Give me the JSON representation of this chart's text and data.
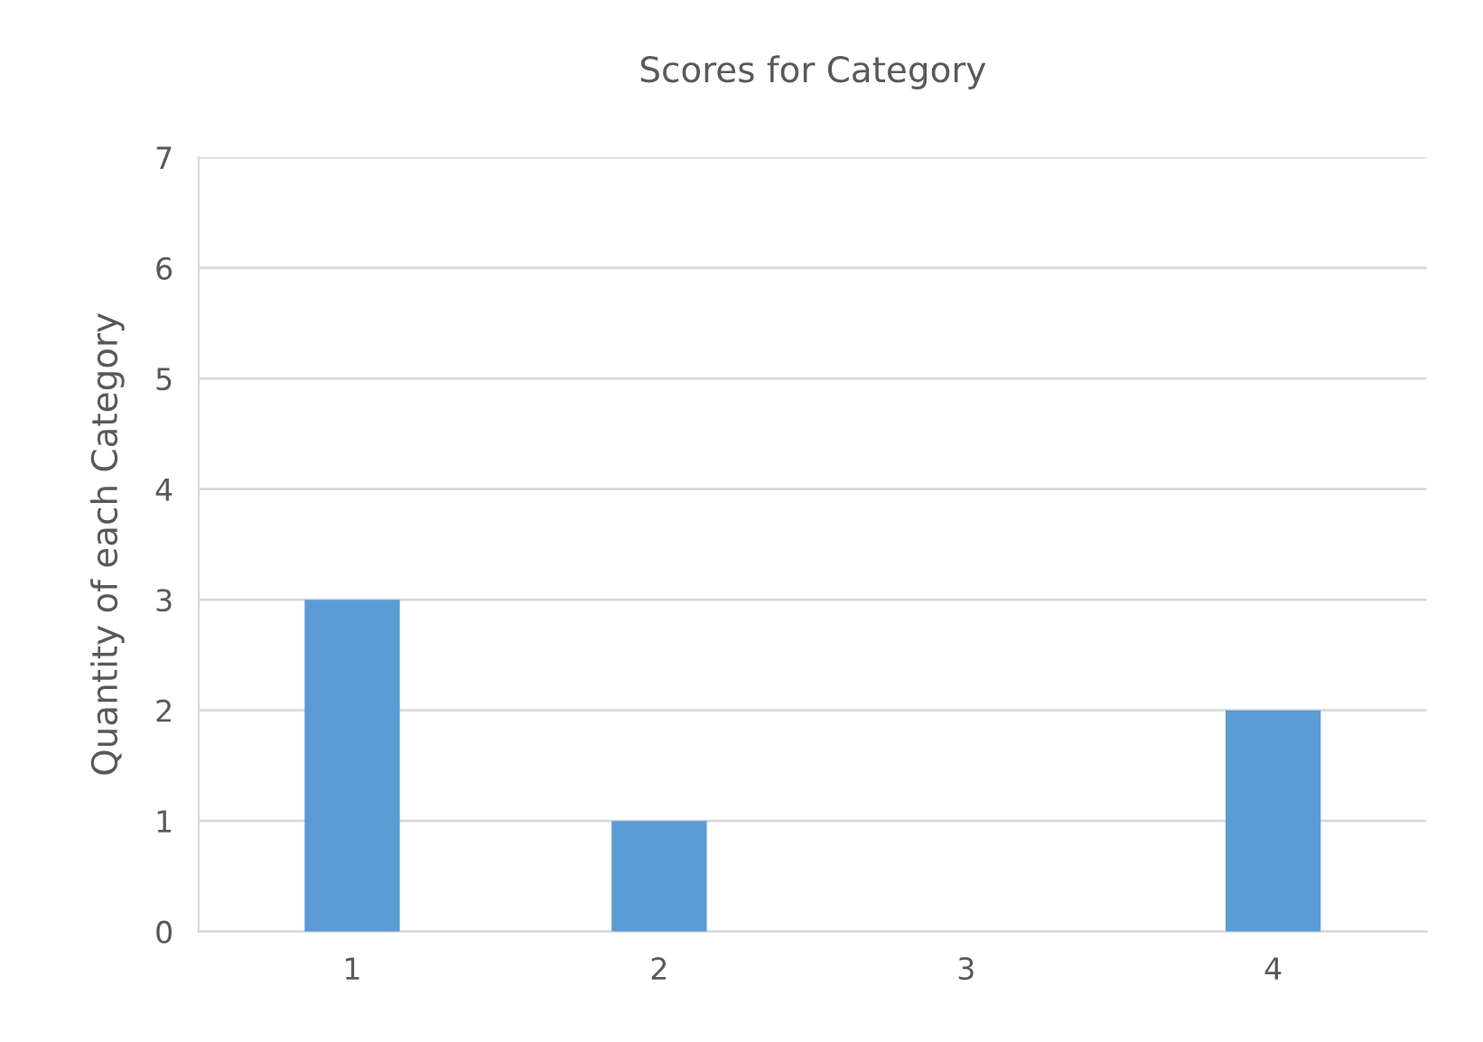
{
  "chart_data": {
    "type": "bar",
    "title": "Scores for Category",
    "ylabel": "Quantity of each Category",
    "categories": [
      "1",
      "2",
      "3",
      "4"
    ],
    "values": [
      3,
      1,
      0,
      2
    ],
    "color": "#5b9bd5",
    "ylim": [
      0,
      7
    ],
    "yticks": [
      0,
      1,
      2,
      3,
      4,
      5,
      6,
      7
    ],
    "grid": "y"
  }
}
